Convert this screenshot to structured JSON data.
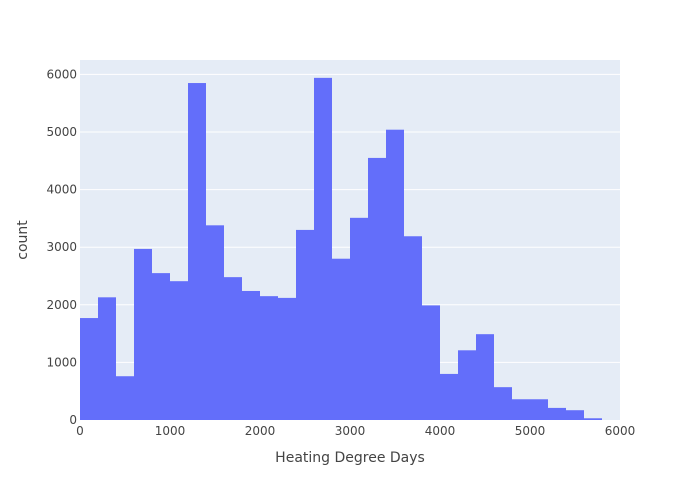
{
  "chart_data": {
    "type": "bar",
    "title": "",
    "xlabel": "Heating Degree Days",
    "ylabel": "count",
    "xlim": [
      0,
      6000
    ],
    "ylim": [
      0,
      6250
    ],
    "bin_width": 200,
    "x_ticks": [
      0,
      1000,
      2000,
      3000,
      4000,
      5000,
      6000
    ],
    "x_tick_labels": [
      "0",
      "1000",
      "2000",
      "3000",
      "4000",
      "5000",
      "6000"
    ],
    "y_ticks": [
      0,
      1000,
      2000,
      3000,
      4000,
      5000,
      6000
    ],
    "y_tick_labels": [
      "0",
      "1000",
      "2000",
      "3000",
      "4000",
      "5000",
      "6000"
    ],
    "grid": true,
    "bar_color": "#636efa",
    "plot_background": "#e5ecf6",
    "bins": [
      {
        "x0": 0,
        "x1": 200,
        "count": 1770
      },
      {
        "x0": 200,
        "x1": 400,
        "count": 2130
      },
      {
        "x0": 400,
        "x1": 600,
        "count": 760
      },
      {
        "x0": 600,
        "x1": 800,
        "count": 2970
      },
      {
        "x0": 800,
        "x1": 1000,
        "count": 2550
      },
      {
        "x0": 1000,
        "x1": 1200,
        "count": 2410
      },
      {
        "x0": 1200,
        "x1": 1400,
        "count": 5850
      },
      {
        "x0": 1400,
        "x1": 1600,
        "count": 3380
      },
      {
        "x0": 1600,
        "x1": 1800,
        "count": 2480
      },
      {
        "x0": 1800,
        "x1": 2000,
        "count": 2240
      },
      {
        "x0": 2000,
        "x1": 2200,
        "count": 2150
      },
      {
        "x0": 2200,
        "x1": 2400,
        "count": 2120
      },
      {
        "x0": 2400,
        "x1": 2600,
        "count": 3300
      },
      {
        "x0": 2600,
        "x1": 2800,
        "count": 5940
      },
      {
        "x0": 2800,
        "x1": 3000,
        "count": 2800
      },
      {
        "x0": 3000,
        "x1": 3200,
        "count": 3510
      },
      {
        "x0": 3200,
        "x1": 3400,
        "count": 4550
      },
      {
        "x0": 3400,
        "x1": 3600,
        "count": 5040
      },
      {
        "x0": 3600,
        "x1": 3800,
        "count": 3190
      },
      {
        "x0": 3800,
        "x1": 4000,
        "count": 1990
      },
      {
        "x0": 4000,
        "x1": 4200,
        "count": 800
      },
      {
        "x0": 4200,
        "x1": 4400,
        "count": 1210
      },
      {
        "x0": 4400,
        "x1": 4600,
        "count": 1490
      },
      {
        "x0": 4600,
        "x1": 4800,
        "count": 570
      },
      {
        "x0": 4800,
        "x1": 5000,
        "count": 360
      },
      {
        "x0": 5000,
        "x1": 5200,
        "count": 360
      },
      {
        "x0": 5200,
        "x1": 5400,
        "count": 210
      },
      {
        "x0": 5400,
        "x1": 5600,
        "count": 170
      },
      {
        "x0": 5600,
        "x1": 5800,
        "count": 30
      }
    ]
  }
}
